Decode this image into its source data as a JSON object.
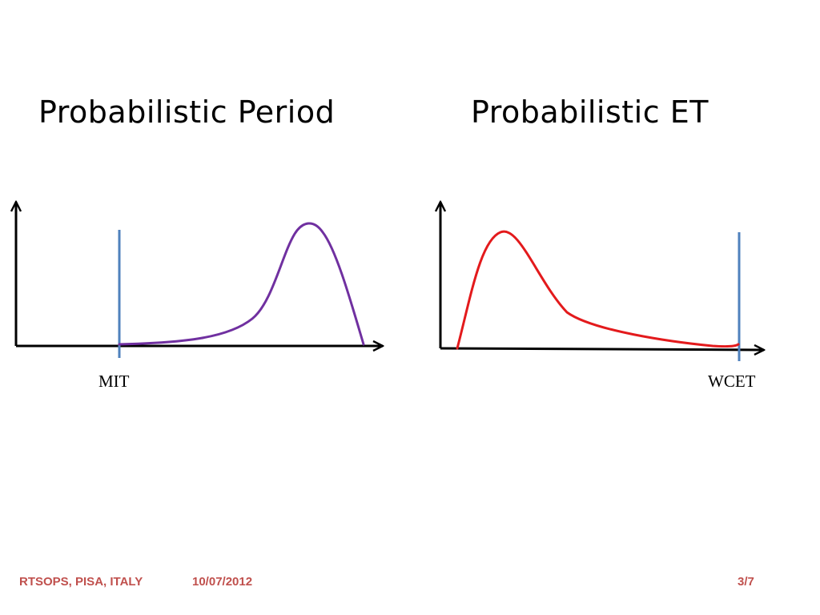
{
  "slide": {
    "titles": {
      "left": "Probabilistic Period",
      "right": "Probabilistic ET"
    },
    "markers": {
      "left": "MIT",
      "right": "WCET"
    },
    "footer": {
      "venue": "RTSOPS, PISA, ITALY",
      "date": "10/07/2012",
      "page": "3/7"
    }
  },
  "colors": {
    "axis": "#000000",
    "marker_line": "#4f81bd",
    "period_curve": "#7030a0",
    "et_curve": "#e31a1c",
    "footer_text": "#c0504d"
  },
  "icons": {
    "axis_arrow": "arrow-head-icon"
  }
}
